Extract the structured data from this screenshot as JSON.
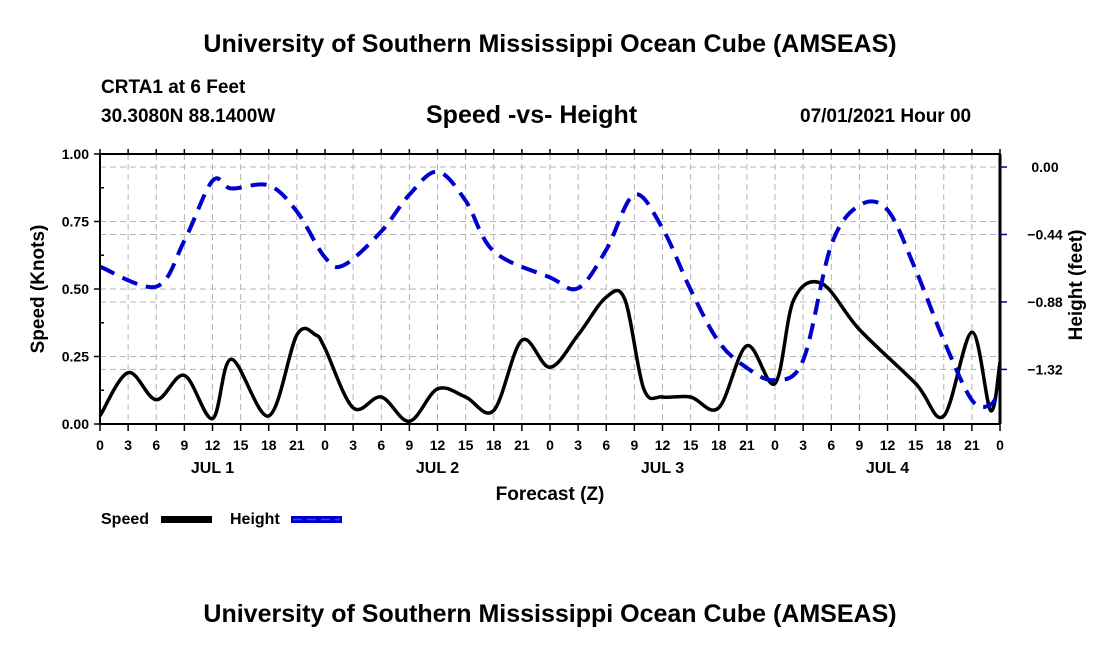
{
  "header": {
    "top_title": "University of Southern Mississippi Ocean Cube (AMSEAS)",
    "station": "CRTA1 at 6 Feet",
    "coords": "30.3080N  88.1400W",
    "chart_title": "Speed -vs- Height",
    "datetime": "07/01/2021 Hour 00"
  },
  "footer": {
    "bottom_title": "University of Southern Mississippi Ocean Cube (AMSEAS)"
  },
  "colors": {
    "speed": "#000000",
    "height": "#0000cc",
    "grid": "#b4b4b4"
  },
  "chart_data": {
    "type": "line",
    "title": "Speed -vs- Height",
    "xlabel": "Forecast (Z)",
    "ylabel": "Speed (Knots)",
    "y2label": "Height (feet)",
    "xlim": [
      0,
      96
    ],
    "ylim": [
      0,
      1.0
    ],
    "y2lim": [
      -1.676,
      0.085
    ],
    "x_tick_labels": [
      "0",
      "3",
      "6",
      "9",
      "12",
      "15",
      "18",
      "21",
      "0",
      "3",
      "6",
      "9",
      "12",
      "15",
      "18",
      "21",
      "0",
      "3",
      "6",
      "9",
      "12",
      "15",
      "18",
      "21",
      "0",
      "3",
      "6",
      "9",
      "12",
      "15",
      "18",
      "21",
      "0"
    ],
    "day_labels": [
      {
        "label": "JUL 1",
        "hour": 12
      },
      {
        "label": "JUL 2",
        "hour": 36
      },
      {
        "label": "JUL 3",
        "hour": 60
      },
      {
        "label": "JUL 4",
        "hour": 84
      }
    ],
    "y_ticks": [
      "0.00",
      "0.25",
      "0.50",
      "0.75",
      "1.00"
    ],
    "y_tick_values": [
      0,
      0.25,
      0.5,
      0.75,
      1.0
    ],
    "y2_ticks": [
      "0.00",
      "-0.44",
      "-0.88",
      "-1.32"
    ],
    "y2_tick_values": [
      0,
      -0.44,
      -0.88,
      -1.32
    ],
    "grid": true,
    "legend": {
      "placement": "bottom-left",
      "entries": [
        "Speed",
        "Height"
      ]
    },
    "series": [
      {
        "name": "Speed",
        "axis": "left",
        "style": "solid",
        "x": [
          0,
          3,
          6,
          9,
          12,
          14,
          18,
          21,
          23,
          24,
          27,
          30,
          33,
          36,
          39,
          42,
          45,
          48,
          51,
          54,
          56,
          58,
          60,
          63,
          66,
          69,
          72,
          74,
          77,
          81,
          87,
          90,
          93,
          95,
          96
        ],
        "values": [
          0.03,
          0.19,
          0.09,
          0.18,
          0.02,
          0.24,
          0.03,
          0.33,
          0.33,
          0.28,
          0.06,
          0.1,
          0.01,
          0.13,
          0.1,
          0.05,
          0.31,
          0.21,
          0.33,
          0.47,
          0.46,
          0.13,
          0.1,
          0.1,
          0.06,
          0.29,
          0.15,
          0.46,
          0.52,
          0.35,
          0.15,
          0.03,
          0.34,
          0.05,
          0.23
        ]
      },
      {
        "name": "Height",
        "axis": "right",
        "style": "dashed",
        "x": [
          0,
          6,
          9,
          12,
          14,
          18,
          21,
          24,
          26,
          30,
          33,
          36,
          39,
          42,
          48,
          51,
          54,
          57,
          60,
          63,
          66,
          69,
          72,
          75,
          78,
          81,
          84,
          87,
          90,
          93,
          95,
          96
        ],
        "values": [
          -0.65,
          -0.78,
          -0.48,
          -0.09,
          -0.14,
          -0.12,
          -0.29,
          -0.59,
          -0.64,
          -0.42,
          -0.18,
          -0.03,
          -0.22,
          -0.55,
          -0.72,
          -0.79,
          -0.54,
          -0.18,
          -0.4,
          -0.8,
          -1.14,
          -1.31,
          -1.39,
          -1.26,
          -0.51,
          -0.25,
          -0.28,
          -0.67,
          -1.13,
          -1.52,
          -1.55,
          -1.44
        ]
      }
    ]
  }
}
